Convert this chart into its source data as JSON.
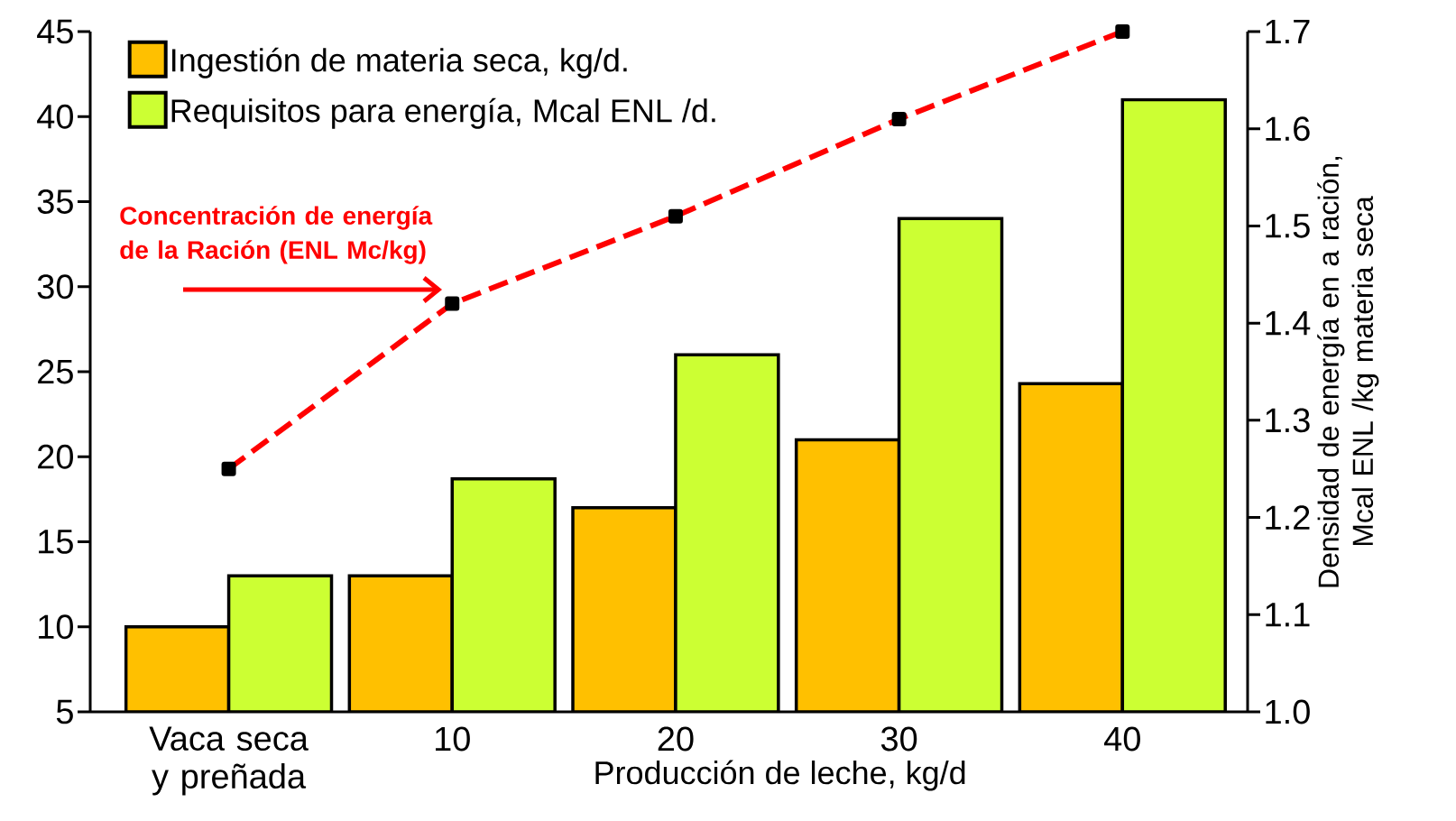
{
  "chart_data": {
    "type": "bar",
    "categories": [
      "Vaca seca y preñada",
      "10",
      "20",
      "30",
      "40"
    ],
    "xlabel": "Producción de leche, kg/d",
    "y2label": "Densidad de energía en a ración, Mcal ENL /kg materia seca",
    "ylim": [
      5,
      45
    ],
    "yticks": [
      5,
      10,
      15,
      20,
      25,
      30,
      35,
      40,
      45
    ],
    "y2lim": [
      1.0,
      1.7
    ],
    "y2ticks": [
      {
        "value": 1.0,
        "label": "1.0"
      },
      1.1,
      1.2,
      1.3,
      1.4,
      1.5,
      1.6,
      1.7
    ],
    "legend": "top left",
    "annotations": [
      "Concentración de energía de la Ración (ENL Mc/kg)"
    ],
    "series": [
      {
        "name": "Ingestión de materia seca, kg/d.",
        "color": "#ffc000",
        "values": [
          10,
          13,
          17,
          21,
          24.3
        ]
      },
      {
        "name": "Requisitos para energía, Mcal ENL /d.",
        "color": "#ccff33",
        "values": [
          13,
          18.7,
          26,
          34,
          41
        ]
      },
      {
        "type": "line",
        "axis": "y2",
        "color": "#ff0000",
        "line_style": "dashed",
        "marker": "square",
        "values": [
          1.25,
          1.42,
          1.51,
          1.61,
          1.7
        ]
      }
    ]
  }
}
